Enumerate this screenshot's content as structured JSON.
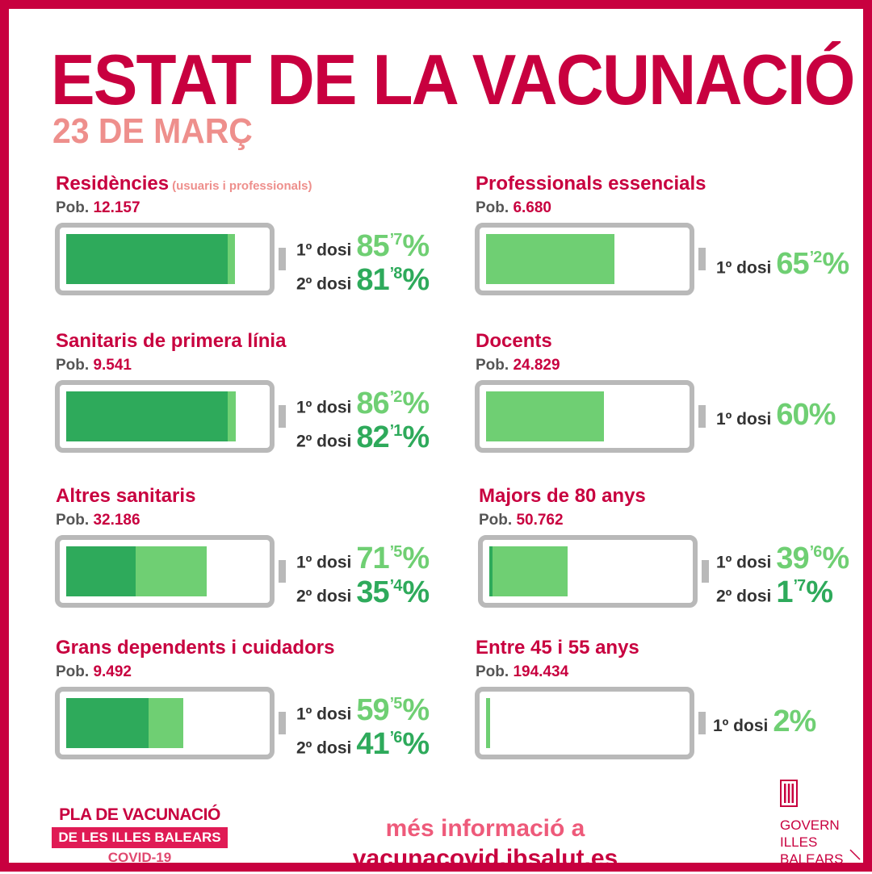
{
  "title": "ESTAT DE LA VACUNACIÓ",
  "date": "23 DE MARÇ",
  "pop_prefix": "Pob.",
  "dose_labels": {
    "first": "1º dosi",
    "second": "2º dosi"
  },
  "groups": [
    {
      "name": "Residències",
      "note": "(usuaris i professionals)",
      "population": "12.157",
      "first_int": "85",
      "first_dec": "’7",
      "second_int": "81",
      "second_dec": "’8",
      "first_value": 85.7,
      "second_value": 81.8
    },
    {
      "name": "Professionals essencials",
      "population": "6.680",
      "first_int": "65",
      "first_dec": "’2",
      "first_value": 65.2
    },
    {
      "name": "Sanitaris de primera línia",
      "population": "9.541",
      "first_int": "86",
      "first_dec": "’2",
      "second_int": "82",
      "second_dec": "’1",
      "first_value": 86.2,
      "second_value": 82.1
    },
    {
      "name": "Docents",
      "population": "24.829",
      "first_int": "60",
      "first_value": 60
    },
    {
      "name": "Altres sanitaris",
      "population": "32.186",
      "first_int": "71",
      "first_dec": "’5",
      "second_int": "35",
      "second_dec": "’4",
      "first_value": 71.5,
      "second_value": 35.4
    },
    {
      "name": "Majors de 80 anys",
      "population": "50.762",
      "first_int": "39",
      "first_dec": "’6",
      "second_int": "1",
      "second_dec": "’7",
      "first_value": 39.6,
      "second_value": 1.7
    },
    {
      "name": "Grans dependents i cuidadors",
      "population": "9.492",
      "first_int": "59",
      "first_dec": "’5",
      "second_int": "41",
      "second_dec": "’6",
      "first_value": 59.5,
      "second_value": 41.6
    },
    {
      "name": "Entre 45 i 55 anys",
      "population": "194.434",
      "first_int": "2",
      "first_value": 2
    }
  ],
  "footer": {
    "plan_line1": "PLA DE VACUNACIÓ",
    "plan_line2": "DE LES ILLES BALEARS",
    "plan_line3": "COVID-19",
    "info_line1": "més informació a",
    "info_line2": "vacunacovid.ibsalut.es",
    "gov_line1": "GOVERN",
    "gov_line2": "ILLES",
    "gov_line3": "BALEARS"
  },
  "colors": {
    "brand": "#c8003f",
    "first_dose": "#6fcf73",
    "second_dose": "#2eaa5b",
    "battery": "#b9b9b9"
  }
}
